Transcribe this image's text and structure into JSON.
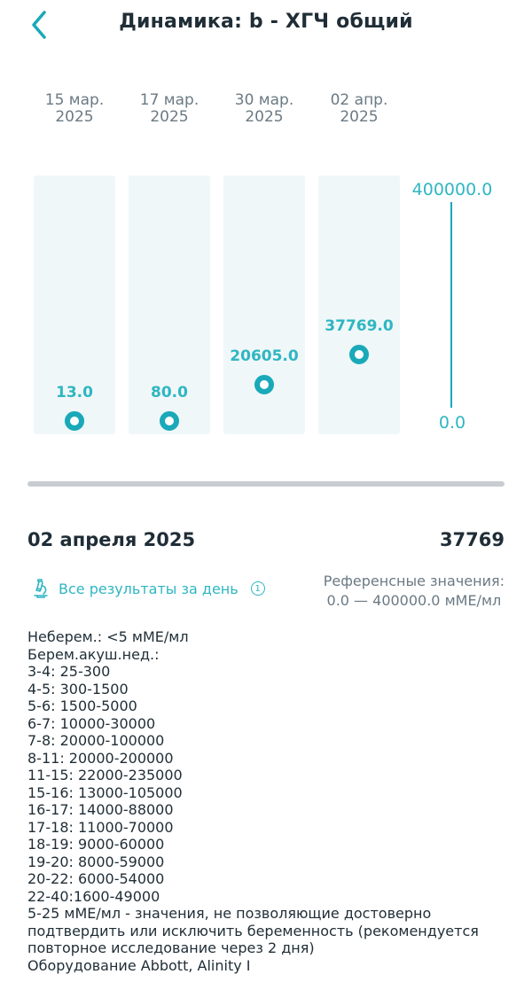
{
  "header": {
    "title": "Динамика: b - ХГЧ общий",
    "back_icon": "chevron-left-icon"
  },
  "chart_data": {
    "type": "scatter",
    "categories": [
      "15 мар. 2025",
      "17 мар. 2025",
      "30 мар. 2025",
      "02 апр. 2025"
    ],
    "dates": [
      {
        "line1": "15 мар.",
        "line2": "2025"
      },
      {
        "line1": "17 мар.",
        "line2": "2025"
      },
      {
        "line1": "30 мар.",
        "line2": "2025"
      },
      {
        "line1": "02 апр.",
        "line2": "2025"
      }
    ],
    "values": [
      13.0,
      80.0,
      20605.0,
      37769.0
    ],
    "value_labels": [
      "13.0",
      "80.0",
      "20605.0",
      "37769.0"
    ],
    "ylim": [
      0.0,
      400000.0
    ],
    "y_max_label": "400000.0",
    "y_min_label": "0.0",
    "accent_color": "#1aa9b8"
  },
  "selected": {
    "date": "02 апреля 2025",
    "value": "37769"
  },
  "day_results": {
    "label": "Все результаты за день",
    "icon": "microscope-icon",
    "info_icon": "info-icon"
  },
  "reference": {
    "title": "Референсные значения:",
    "range": "0.0 — 400000.0 мМЕ/мл"
  },
  "reference_notes": [
    "Неберем.: <5 мМЕ/мл",
    "Берем.акуш.нед.:",
    "3-4: 25-300",
    "4-5: 300-1500",
    "5-6: 1500-5000",
    "6-7: 10000-30000",
    "7-8: 20000-100000",
    "8-11: 20000-200000",
    "11-15: 22000-235000",
    "15-16: 13000-105000",
    "16-17: 14000-88000",
    "17-18: 11000-70000",
    "18-19: 9000-60000",
    "19-20: 8000-59000",
    "20-22: 6000-54000",
    "22-40:1600-49000",
    "5-25 мМЕ/мл - значения, не позволяющие достоверно подтвердить или исключить беременность (рекомендуется повторное исследование через 2 дня)",
    "Оборудование Abbott, Alinity I"
  ]
}
